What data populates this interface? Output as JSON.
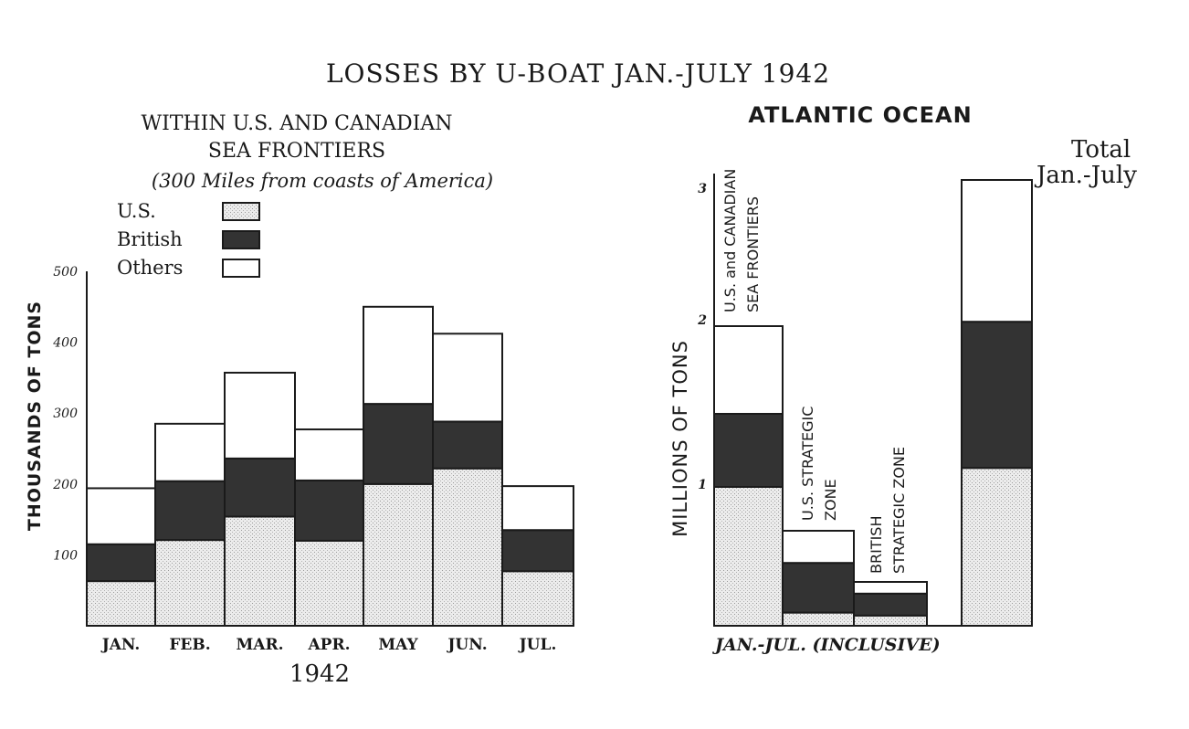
{
  "title": "LOSSES BY U-BOAT JAN.-JULY 1942",
  "colors": {
    "us": "#e6e6e6",
    "british": "#333333",
    "others": "#ffffff",
    "outline": "#1a1a1a"
  },
  "legend": [
    {
      "label": "U.S.",
      "key": "us"
    },
    {
      "label": "British",
      "key": "british"
    },
    {
      "label": "Others",
      "key": "others"
    }
  ],
  "chart_data": [
    {
      "type": "bar",
      "stacked": true,
      "title": "WITHIN U.S. AND CANADIAN",
      "title_line2": "SEA FRONTIERS",
      "subtitle": "(300 Miles from coasts of America)",
      "ylabel": "THOUSANDS OF TONS",
      "xlabel": "1942",
      "ylim": [
        0,
        500
      ],
      "yticks": [
        "100",
        "200",
        "300",
        "400",
        "500"
      ],
      "grid": false,
      "legend_position": "top-left",
      "categories": [
        "JAN.",
        "FEB.",
        "MAR.",
        "APR.",
        "MAY",
        "JUN.",
        "JUL."
      ],
      "series": [
        {
          "name": "U.S.",
          "values": [
            63,
            121,
            154,
            120,
            200,
            222,
            77
          ]
        },
        {
          "name": "British",
          "values": [
            52,
            83,
            82,
            85,
            113,
            66,
            58
          ]
        },
        {
          "name": "Others",
          "values": [
            79,
            81,
            121,
            72,
            137,
            124,
            62
          ]
        }
      ]
    },
    {
      "type": "bar",
      "stacked": true,
      "title": "ATLANTIC OCEAN",
      "ylabel": "MILLIONS OF TONS",
      "xlabel": "JAN.-JUL. (INCLUSIVE)",
      "ylim": [
        0,
        3
      ],
      "yticks": [
        "1",
        "2",
        "3"
      ],
      "grid": false,
      "categories": [
        "U.S. and CANADIAN SEA FRONTIERS",
        "U.S. STRATEGIC ZONE",
        "BRITISH STRATEGIC ZONE",
        "Total Jan.-July"
      ],
      "category_labels": [
        [
          "U.S. and CANADIAN",
          "SEA FRONTIERS"
        ],
        [
          "U.S. STRATEGIC",
          "ZONE"
        ],
        [
          "BRITISH",
          "STRATEGIC ZONE"
        ],
        [
          "Total",
          "Jan.-July"
        ]
      ],
      "series": [
        {
          "name": "U.S.",
          "values": [
            0.95,
            0.09,
            0.07,
            1.08
          ]
        },
        {
          "name": "British",
          "values": [
            0.5,
            0.34,
            0.15,
            1.0
          ]
        },
        {
          "name": "Others",
          "values": [
            0.6,
            0.22,
            0.08,
            0.97
          ]
        }
      ]
    }
  ]
}
